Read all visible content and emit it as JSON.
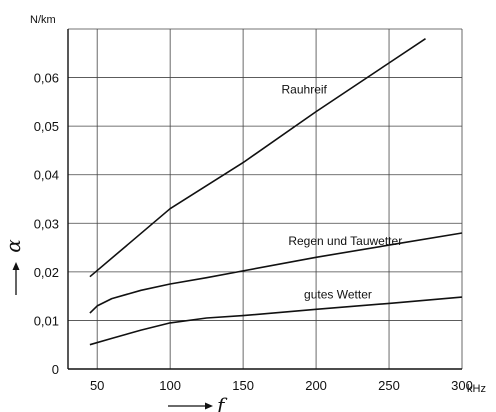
{
  "chart_data": {
    "type": "line",
    "title": "",
    "x": [
      45,
      50,
      60,
      80,
      100,
      125,
      150,
      200,
      250,
      300
    ],
    "xtick_labels": [
      "50",
      "100",
      "150",
      "200",
      "250",
      "300"
    ],
    "xtick_values": [
      50,
      100,
      150,
      200,
      250,
      300
    ],
    "x_unit": "kHz",
    "x_symbol": "f",
    "xlim": [
      30,
      300
    ],
    "ytick_labels": [
      "0",
      "0,01",
      "0,02",
      "0,03",
      "0,04",
      "0,05",
      "0,06"
    ],
    "ytick_values": [
      0,
      0.01,
      0.02,
      0.03,
      0.04,
      0.05,
      0.06
    ],
    "y_unit": "N/km",
    "y_symbol": "α",
    "ylim": [
      0,
      0.07
    ],
    "grid": true,
    "series": [
      {
        "name": "Rauhreif",
        "x": [
          45,
          100,
          150,
          200,
          250,
          275
        ],
        "y": [
          0.019,
          0.033,
          0.0425,
          0.053,
          0.063,
          0.068
        ]
      },
      {
        "name": "Regen und Tauwetter",
        "x": [
          45,
          50,
          60,
          80,
          100,
          125,
          150,
          200,
          250,
          300
        ],
        "y": [
          0.0115,
          0.013,
          0.0145,
          0.0162,
          0.0175,
          0.0188,
          0.0202,
          0.023,
          0.0255,
          0.028
        ]
      },
      {
        "name": "gutes Wetter",
        "x": [
          45,
          60,
          80,
          100,
          125,
          150,
          200,
          250,
          300
        ],
        "y": [
          0.005,
          0.0063,
          0.008,
          0.0095,
          0.0105,
          0.011,
          0.0123,
          0.0135,
          0.0148
        ]
      }
    ]
  }
}
